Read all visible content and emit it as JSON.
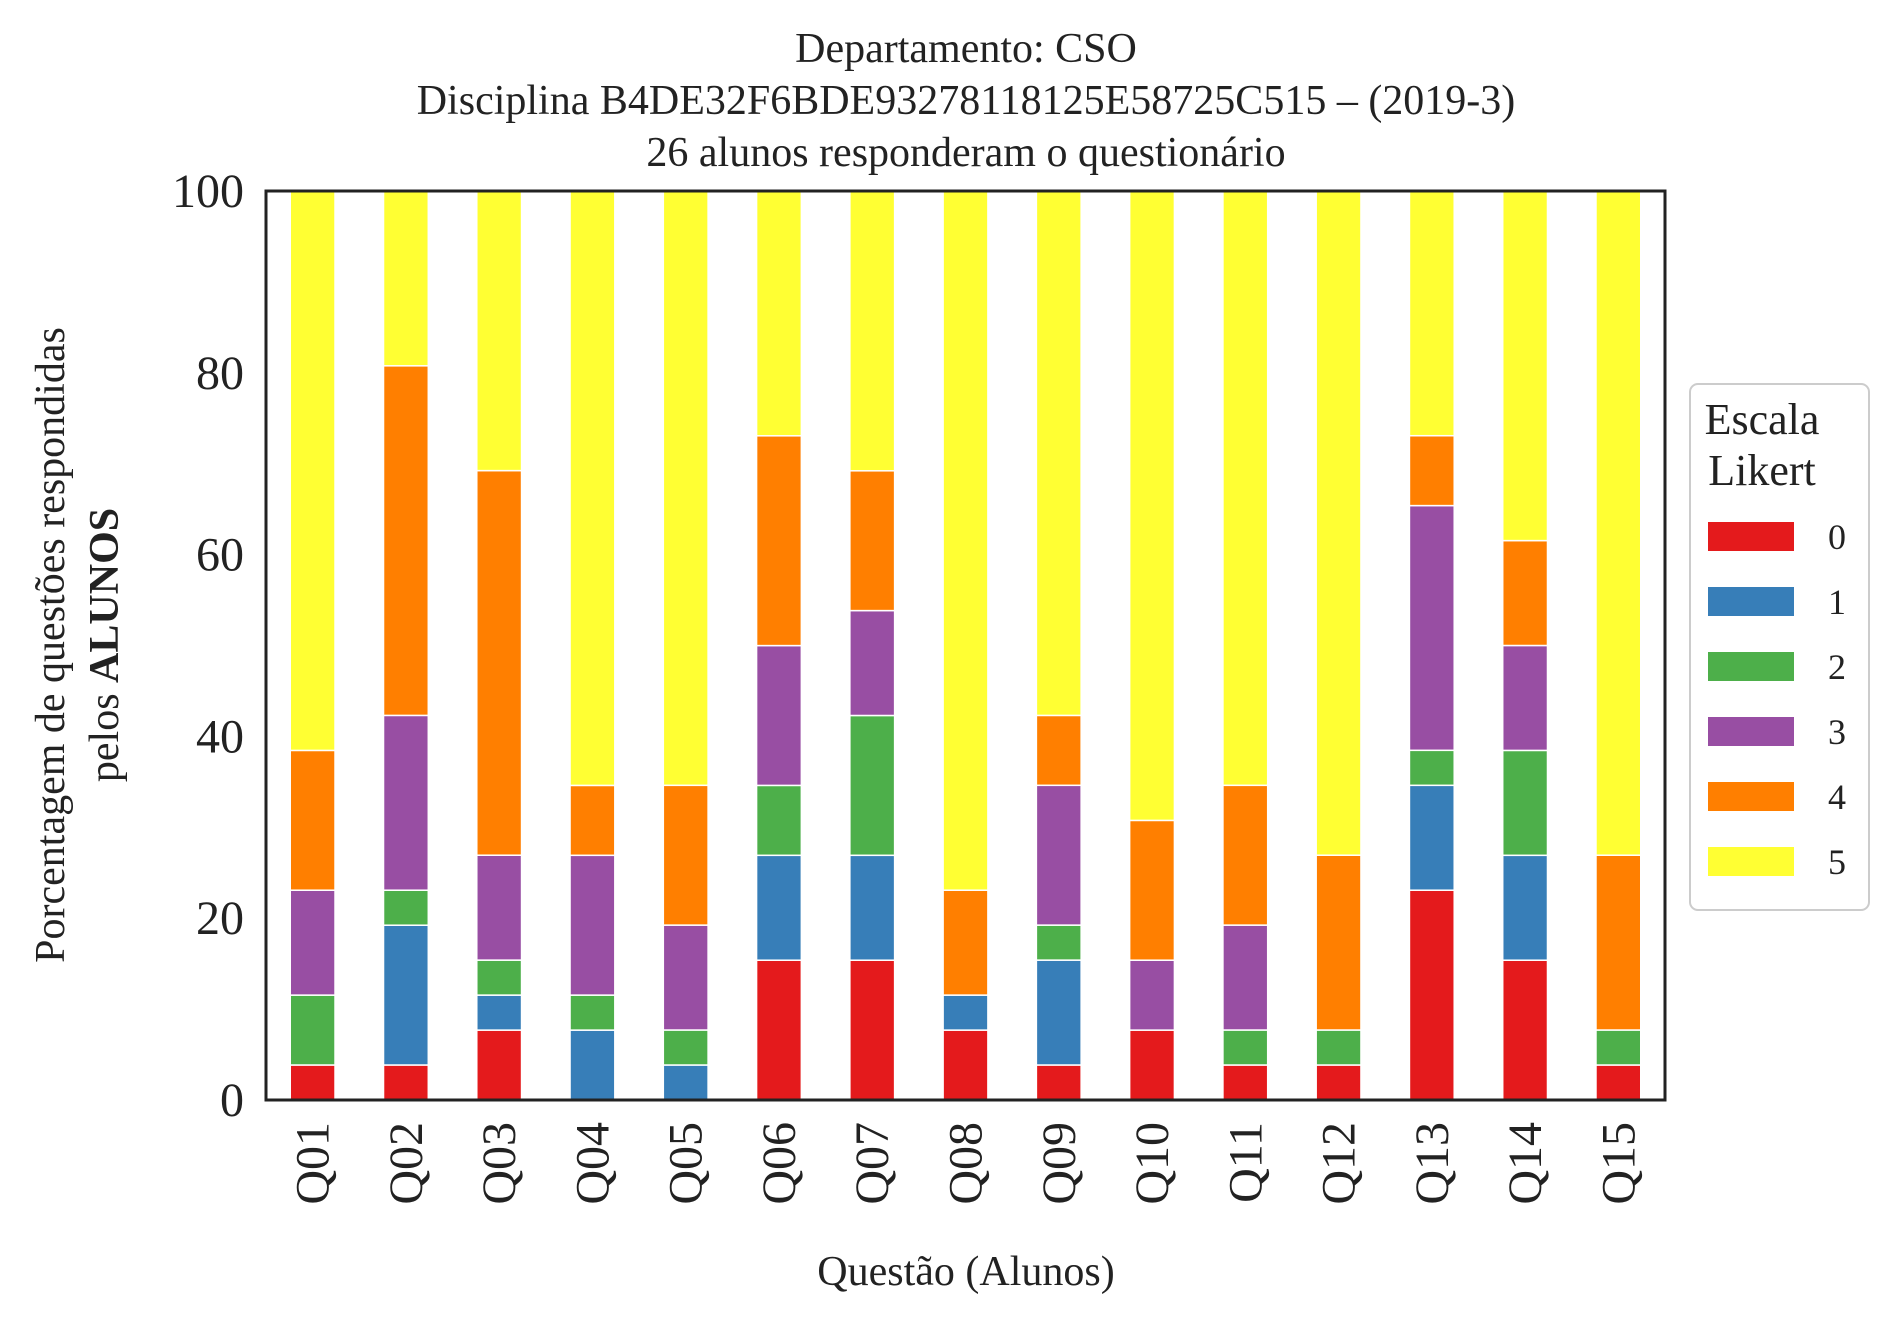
{
  "chart_data": {
    "type": "bar",
    "stacked": true,
    "title_lines": [
      "Departamento: CSO",
      "Disciplina B4DE32F6BDE93278118125E58725C515 – (2019-3)",
      "26 alunos responderam o questionário"
    ],
    "xlabel": "Questão (Alunos)",
    "ylabel_line1": "Porcentagem de questões respondidas",
    "ylabel_line2_prefix": "pelos ",
    "ylabel_line2_bold": "ALUNOS",
    "ylim": [
      0,
      100
    ],
    "yticks": [
      "0",
      "20",
      "40",
      "60",
      "80",
      "100"
    ],
    "categories": [
      "Q01",
      "Q02",
      "Q03",
      "Q04",
      "Q05",
      "Q06",
      "Q07",
      "Q08",
      "Q09",
      "Q10",
      "Q11",
      "Q12",
      "Q13",
      "Q14",
      "Q15"
    ],
    "legend_title_lines": [
      "Escala",
      "Likert"
    ],
    "legend_position": "right",
    "series": [
      {
        "name": "0",
        "color": "#e41a1c",
        "values": [
          3.85,
          3.85,
          7.69,
          0,
          0,
          15.38,
          15.38,
          7.69,
          3.85,
          7.69,
          3.85,
          3.85,
          23.08,
          15.38,
          3.85
        ]
      },
      {
        "name": "1",
        "color": "#377eb8",
        "values": [
          0,
          15.38,
          3.85,
          7.69,
          3.85,
          11.54,
          11.54,
          3.85,
          11.54,
          0,
          0,
          0,
          11.54,
          11.54,
          0
        ]
      },
      {
        "name": "2",
        "color": "#4daf4a",
        "values": [
          7.69,
          3.85,
          3.85,
          3.85,
          3.85,
          7.69,
          15.38,
          0,
          3.85,
          0,
          3.85,
          3.85,
          3.85,
          11.54,
          3.85
        ]
      },
      {
        "name": "3",
        "color": "#984ea3",
        "values": [
          11.54,
          19.23,
          11.54,
          15.38,
          11.54,
          15.38,
          11.54,
          0,
          15.38,
          7.69,
          11.54,
          0,
          26.92,
          11.54,
          0
        ]
      },
      {
        "name": "4",
        "color": "#ff7f00",
        "values": [
          15.38,
          38.46,
          42.31,
          7.69,
          15.38,
          23.08,
          15.38,
          11.54,
          7.69,
          15.38,
          15.38,
          19.23,
          7.69,
          11.54,
          19.23
        ]
      },
      {
        "name": "5",
        "color": "#ffff33",
        "values": [
          61.54,
          19.23,
          30.77,
          65.38,
          65.38,
          26.92,
          30.77,
          76.92,
          57.69,
          69.23,
          65.38,
          73.08,
          26.92,
          38.46,
          73.08
        ]
      }
    ]
  }
}
